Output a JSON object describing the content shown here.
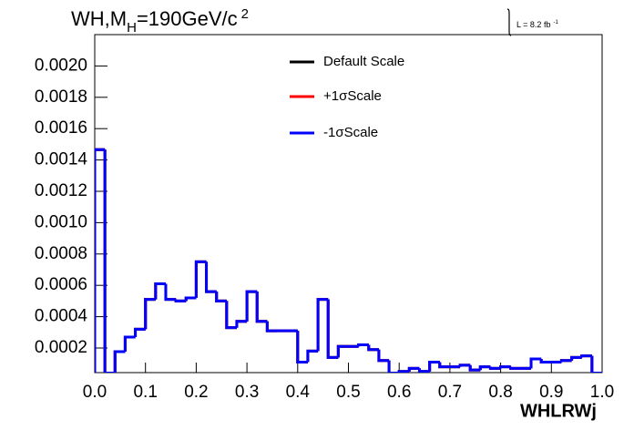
{
  "chart_data": {
    "type": "histogram",
    "title": {
      "main": "WH,M",
      "sub": "H",
      "rest": "=190GeV/c",
      "sup": "2"
    },
    "annotation": {
      "text": "L = 8.2 fb",
      "sup": "-1"
    },
    "x_label": "WHLRWj",
    "bins": [
      0,
      0.02,
      0.04,
      0.06,
      0.08,
      0.1,
      0.12,
      0.14,
      0.16,
      0.18,
      0.2,
      0.22,
      0.24,
      0.26,
      0.28,
      0.3,
      0.32,
      0.34,
      0.36,
      0.38,
      0.4,
      0.42,
      0.44,
      0.46,
      0.48,
      0.5,
      0.52,
      0.54,
      0.56,
      0.58,
      0.6,
      0.62,
      0.64,
      0.66,
      0.68,
      0.7,
      0.72,
      0.74,
      0.76,
      0.78,
      0.8,
      0.82,
      0.84,
      0.86,
      0.88,
      0.9,
      0.92,
      0.94,
      0.96,
      0.98,
      1
    ],
    "series": [
      {
        "name": "Default Scale",
        "color": "#000000",
        "values": [
          0.001466,
          4e-05,
          0.000177,
          0.00027,
          0.00032,
          0.00051,
          0.00061,
          0.00051,
          0.0005,
          0.00052,
          0.00075,
          0.00056,
          0.0005,
          0.00033,
          0.00037,
          0.00056,
          0.00037,
          0.00031,
          0.00031,
          0.00031,
          0.00011,
          0.00018,
          0.00051,
          0.00014,
          0.00021,
          0.00021,
          0.00022,
          0.00019,
          0.00012,
          4e-05,
          5e-05,
          7e-05,
          5e-05,
          0.00011,
          8e-05,
          8e-05,
          9e-05,
          6e-05,
          8e-05,
          7e-05,
          8e-05,
          7e-05,
          7e-05,
          0.00013,
          0.00011,
          0.00011,
          0.00012,
          0.00014,
          0.00015,
          4e-05
        ]
      },
      {
        "name": "+1σScale",
        "color": "#ff0000",
        "values": [
          0.001466,
          4e-05,
          0.000177,
          0.00027,
          0.00032,
          0.00051,
          0.00061,
          0.00051,
          0.0005,
          0.00052,
          0.00075,
          0.00056,
          0.0005,
          0.00033,
          0.00037,
          0.00056,
          0.00037,
          0.00031,
          0.00031,
          0.00031,
          0.00011,
          0.00018,
          0.00051,
          0.00014,
          0.00021,
          0.00021,
          0.00022,
          0.00019,
          0.00012,
          4e-05,
          5e-05,
          7e-05,
          5e-05,
          0.00011,
          8e-05,
          8e-05,
          9e-05,
          6e-05,
          8e-05,
          7e-05,
          8e-05,
          7e-05,
          7e-05,
          0.00013,
          0.00011,
          0.00011,
          0.00012,
          0.00014,
          0.00015,
          4e-05
        ]
      },
      {
        "name": "-1σScale",
        "color": "#0000ff",
        "values": [
          0.001466,
          4e-05,
          0.000177,
          0.00027,
          0.00032,
          0.00051,
          0.00061,
          0.00051,
          0.0005,
          0.00052,
          0.00075,
          0.00056,
          0.0005,
          0.00033,
          0.00037,
          0.00056,
          0.00037,
          0.00031,
          0.00031,
          0.00031,
          0.00011,
          0.00018,
          0.00051,
          0.00014,
          0.00021,
          0.00021,
          0.00022,
          0.00019,
          0.00012,
          4e-05,
          5e-05,
          7e-05,
          5e-05,
          0.00011,
          8e-05,
          8e-05,
          9e-05,
          6e-05,
          8e-05,
          7e-05,
          8e-05,
          7e-05,
          7e-05,
          0.00013,
          0.00011,
          0.00011,
          0.00012,
          0.00014,
          0.00015,
          4e-05
        ]
      }
    ],
    "xlim": [
      0,
      1
    ],
    "xticks": [
      {
        "value": 0,
        "label": "0.0"
      },
      0.1,
      0.2,
      0.3,
      0.4,
      0.5,
      0.6,
      0.7,
      0.8,
      0.9,
      {
        "value": 1,
        "label": "1.0"
      }
    ],
    "ylim": [
      4.3e-05,
      0.0022
    ],
    "yticks": [
      0.0002,
      0.0004,
      0.0006,
      0.0008,
      {
        "value": 0.001,
        "label": "0.0010"
      },
      0.0012,
      0.0014,
      0.0016,
      0.0018,
      {
        "value": 0.002,
        "label": "0.0020"
      }
    ],
    "legend": "top-center"
  }
}
